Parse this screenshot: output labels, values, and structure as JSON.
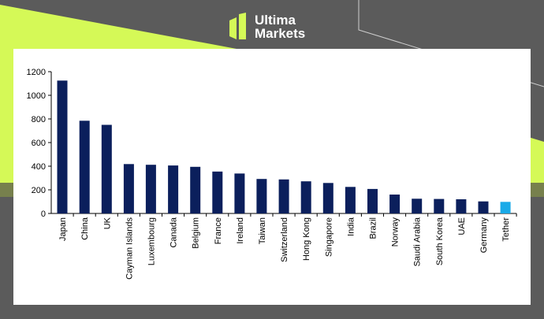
{
  "brand": {
    "line1": "Ultima",
    "line2": "Markets"
  },
  "colors": {
    "background": "#5b5b5b",
    "accent_green": "#d5f957",
    "bar": "#0b1f5c",
    "highlight_bar": "#1aaae8"
  },
  "chart_data": {
    "type": "bar",
    "categories": [
      "Japan",
      "China",
      "UK",
      "Cayman Islands",
      "Luxembourg",
      "Canada",
      "Belgium",
      "France",
      "Ireland",
      "Taiwan",
      "Switzerland",
      "Hong Kong",
      "Singapore",
      "India",
      "Brazil",
      "Norway",
      "Saudi Arabia",
      "South Korea",
      "UAE",
      "Germany",
      "Tether"
    ],
    "values": [
      1125,
      785,
      750,
      418,
      412,
      406,
      395,
      355,
      338,
      292,
      288,
      272,
      258,
      225,
      207,
      160,
      125,
      123,
      120,
      102,
      98
    ],
    "highlight": [
      "Tether"
    ],
    "title": "",
    "xlabel": "",
    "ylabel": "",
    "ylim": [
      0,
      1200
    ],
    "yticks": [
      0,
      200,
      400,
      600,
      800,
      1000,
      1200
    ],
    "grid": false,
    "legend": "none"
  }
}
